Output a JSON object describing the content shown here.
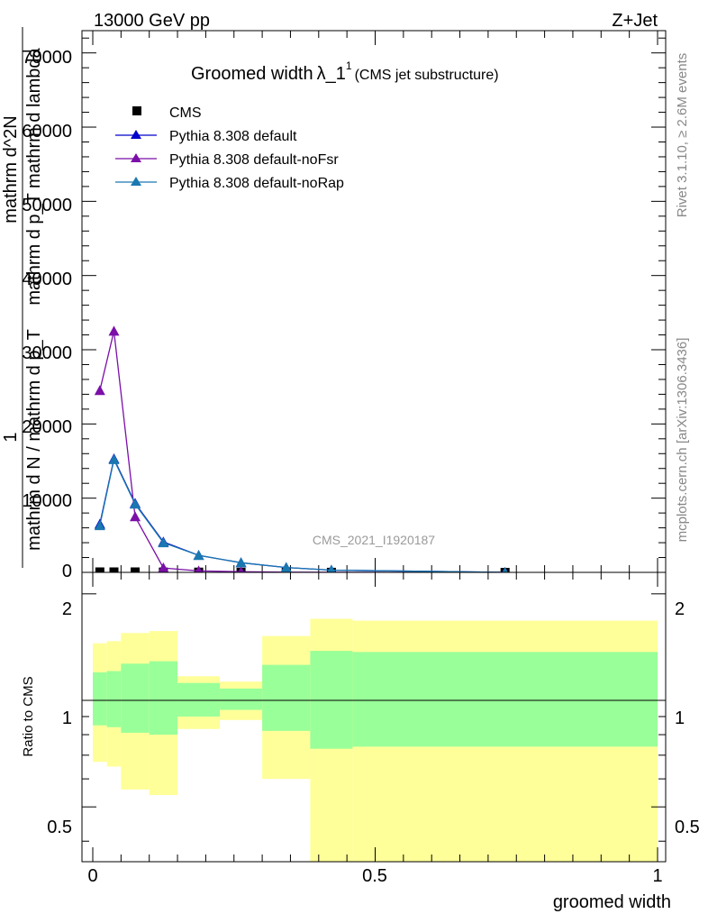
{
  "header": {
    "left": "13000 GeV pp",
    "right": "Z+Jet"
  },
  "title": {
    "main": "Groomed width",
    "lambda": "λ_1",
    "sup": "1",
    "sub": "(CMS jet substructure)"
  },
  "side_labels": {
    "rivet": "Rivet 3.1.10, ≥ 2.6M events",
    "site": "mcplots.cern.ch [arXiv:1306.3436]"
  },
  "watermark": "CMS_2021_I1920187",
  "ylabel_main": {
    "frac_top": "1",
    "frac_bottom": "mathrm d N / mathrm d p_T",
    "numer": "mathrm d^2N",
    "denom": "mathrm d p_T mathrm d lambda"
  },
  "ylabel_ratio": "Ratio to CMS",
  "xlabel": "groomed width",
  "x_tick_labels": [
    "0",
    "0.5",
    "1"
  ],
  "main_tick_labels": [
    "0",
    "10000",
    "20000",
    "30000",
    "40000",
    "50000",
    "60000",
    "70000"
  ],
  "ratio_tick_labels": [
    "0.5",
    "1",
    "2"
  ],
  "legend": [
    {
      "label": "CMS",
      "marker": "square",
      "color": "#000000"
    },
    {
      "label": "Pythia 8.308 default",
      "marker": "triangle",
      "color": "#0000cc"
    },
    {
      "label": "Pythia 8.308 default-noFsr",
      "marker": "triangle",
      "color": "#7b0fa8"
    },
    {
      "label": "Pythia 8.308 default-noRap",
      "marker": "triangle",
      "color": "#1a78b0"
    }
  ],
  "chart_data": {
    "type": "line",
    "x_range": [
      0,
      1
    ],
    "main_ylim": [
      0,
      73000
    ],
    "ratio_ylim": [
      0.35,
      2.3
    ],
    "ratio_log": true,
    "bin_edges": [
      0,
      0.025,
      0.05,
      0.1,
      0.15,
      0.225,
      0.3,
      0.385,
      0.46,
      1.0
    ],
    "x": [
      0.0125,
      0.0375,
      0.075,
      0.125,
      0.1875,
      0.2625,
      0.3425,
      0.4225,
      0.73
    ],
    "series": [
      {
        "name": "CMS",
        "color": "#000000",
        "y": [
          60,
          60,
          60,
          40,
          30,
          20,
          15,
          10,
          0
        ]
      },
      {
        "name": "Pythia 8.308 default",
        "color": "#0000cc",
        "y": [
          6500,
          15300,
          9300,
          4100,
          2300,
          1300,
          650,
          300,
          0
        ]
      },
      {
        "name": "Pythia 8.308 default-noFsr",
        "color": "#7b0fa8",
        "y": [
          24500,
          32500,
          7500,
          600,
          200,
          80,
          30,
          15,
          0
        ]
      },
      {
        "name": "Pythia 8.308 default-noRap",
        "color": "#1a78b0",
        "y": [
          6300,
          15200,
          9200,
          4000,
          2300,
          1300,
          650,
          300,
          0
        ]
      }
    ],
    "ratio_bands": {
      "yellow_low": [
        0.67,
        0.65,
        0.56,
        0.54,
        0.83,
        0.88,
        0.6,
        0.35,
        0.35
      ],
      "yellow_high": [
        1.45,
        1.47,
        1.55,
        1.57,
        1.17,
        1.13,
        1.52,
        1.7,
        1.68
      ],
      "green_low": [
        0.85,
        0.84,
        0.81,
        0.8,
        0.9,
        0.94,
        0.82,
        0.73,
        0.74
      ],
      "green_high": [
        1.2,
        1.21,
        1.27,
        1.29,
        1.12,
        1.08,
        1.26,
        1.38,
        1.37
      ]
    }
  }
}
